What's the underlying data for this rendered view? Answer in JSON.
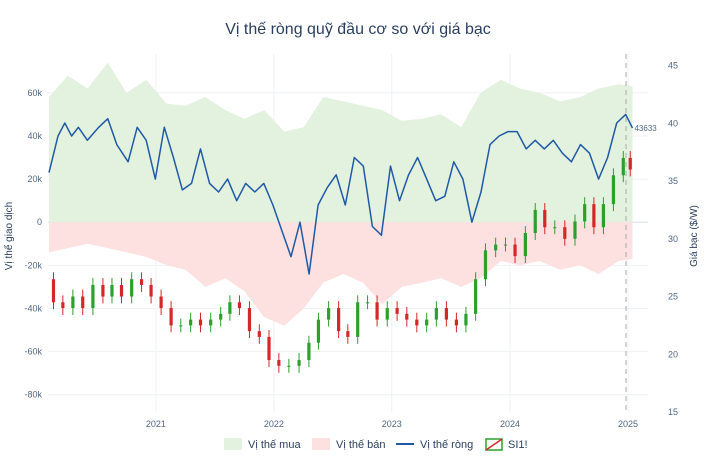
{
  "chart_data": {
    "type": "line",
    "title": "Vị thế ròng quỹ đầu cơ so với giá bạc",
    "xlabel": "",
    "ylabel": "Vị thế giao dịch",
    "y2label": "Giá bạc ($/W)",
    "x_ticks": [
      "2021",
      "2022",
      "2023",
      "2024",
      "2025"
    ],
    "x_range": [
      "2020-08-01",
      "2025-09-01"
    ],
    "forecast_start": "2025-06-25",
    "ylim": [
      -88000,
      78000
    ],
    "y_ticks": [
      60000,
      40000,
      20000,
      0,
      -20000,
      -40000,
      -60000,
      -80000
    ],
    "y_tick_labels": [
      "60k",
      "40k",
      "20k",
      "0",
      "-20k",
      "-40k",
      "-60k",
      "-80k"
    ],
    "y2lim": [
      15,
      46
    ],
    "y2_ticks": [
      15,
      20,
      25,
      30,
      35,
      40,
      45
    ],
    "y2_tick_labels": [
      "15",
      "20",
      "25",
      "30",
      "35",
      "40",
      "45"
    ],
    "last_net_label": "43633",
    "legend": [
      "Vị thế mua",
      "Vị thế bán",
      "Vị thế ròng",
      "SI1!"
    ],
    "legend_position": "bottom",
    "grid": true,
    "colors": {
      "long_fill": "#e3f1df",
      "short_fill": "#fde0e0",
      "net_line": "#1f5aa6",
      "candle_up": "#2ca02c",
      "candle_down": "#d62728",
      "forecast_line": "#aaaaaa"
    },
    "series": [
      {
        "name": "Vị thế mua",
        "x": [
          "2020-08-04",
          "2020-10-01",
          "2020-12-01",
          "2021-02-02",
          "2021-04-01",
          "2021-06-01",
          "2021-08-03",
          "2021-10-01",
          "2021-12-01",
          "2022-02-01",
          "2022-04-01",
          "2022-06-01",
          "2022-08-02",
          "2022-10-01",
          "2022-12-01",
          "2023-02-01",
          "2023-04-03",
          "2023-06-01",
          "2023-08-01",
          "2023-10-02",
          "2023-12-01",
          "2024-02-01",
          "2024-04-01",
          "2024-06-03",
          "2024-08-01",
          "2024-10-01",
          "2024-12-02",
          "2025-02-03",
          "2025-04-01",
          "2025-06-02",
          "2025-07-15"
        ],
        "values": [
          58000,
          68000,
          62000,
          74000,
          60000,
          66000,
          55000,
          54000,
          58000,
          52000,
          48000,
          52000,
          42000,
          44000,
          58000,
          56000,
          54000,
          52000,
          47000,
          48000,
          50000,
          44000,
          60000,
          66000,
          62000,
          60000,
          56000,
          58000,
          62000,
          64000,
          63000
        ]
      },
      {
        "name": "Vị thế bán",
        "x": [
          "2020-08-04",
          "2020-10-01",
          "2020-12-01",
          "2021-02-02",
          "2021-04-01",
          "2021-06-01",
          "2021-08-03",
          "2021-10-01",
          "2021-12-01",
          "2022-02-01",
          "2022-04-01",
          "2022-06-01",
          "2022-08-02",
          "2022-10-01",
          "2022-12-01",
          "2023-02-01",
          "2023-04-03",
          "2023-06-01",
          "2023-08-01",
          "2023-10-02",
          "2023-12-01",
          "2024-02-01",
          "2024-04-01",
          "2024-06-03",
          "2024-08-01",
          "2024-10-01",
          "2024-12-02",
          "2025-02-03",
          "2025-04-01",
          "2025-06-02",
          "2025-07-15"
        ],
        "values": [
          -14000,
          -12000,
          -10000,
          -12000,
          -14000,
          -16000,
          -20000,
          -22000,
          -30000,
          -26000,
          -32000,
          -44000,
          -48000,
          -40000,
          -28000,
          -24000,
          -28000,
          -38000,
          -30000,
          -28000,
          -26000,
          -30000,
          -26000,
          -18000,
          -20000,
          -18000,
          -22000,
          -20000,
          -24000,
          -18000,
          -17000
        ]
      },
      {
        "name": "Vị thế ròng",
        "x": [
          "2020-08-04",
          "2020-09-01",
          "2020-09-22",
          "2020-10-13",
          "2020-11-03",
          "2020-12-01",
          "2021-01-05",
          "2021-02-02",
          "2021-03-02",
          "2021-04-06",
          "2021-05-04",
          "2021-06-01",
          "2021-06-29",
          "2021-07-27",
          "2021-08-24",
          "2021-09-21",
          "2021-10-19",
          "2021-11-16",
          "2021-12-14",
          "2022-01-11",
          "2022-02-08",
          "2022-03-08",
          "2022-04-05",
          "2022-05-03",
          "2022-05-31",
          "2022-06-28",
          "2022-07-26",
          "2022-08-23",
          "2022-09-20",
          "2022-10-18",
          "2022-11-15",
          "2022-12-13",
          "2023-01-10",
          "2023-02-07",
          "2023-03-07",
          "2023-04-04",
          "2023-05-02",
          "2023-05-30",
          "2023-06-27",
          "2023-07-25",
          "2023-08-22",
          "2023-09-19",
          "2023-10-17",
          "2023-11-14",
          "2023-12-12",
          "2024-01-09",
          "2024-02-06",
          "2024-03-05",
          "2024-04-02",
          "2024-04-30",
          "2024-05-28",
          "2024-06-25",
          "2024-07-23",
          "2024-08-20",
          "2024-09-17",
          "2024-10-15",
          "2024-11-12",
          "2024-12-10",
          "2025-01-07",
          "2025-02-04",
          "2025-03-04",
          "2025-04-01",
          "2025-04-29",
          "2025-05-27",
          "2025-06-24",
          "2025-07-15"
        ],
        "values": [
          23000,
          40000,
          46000,
          40000,
          44000,
          38000,
          44000,
          48000,
          36000,
          28000,
          44000,
          38000,
          20000,
          44000,
          30000,
          15000,
          18000,
          34000,
          18000,
          14000,
          20000,
          10000,
          18000,
          14000,
          18000,
          8000,
          -4000,
          -16000,
          0,
          -24000,
          8000,
          16000,
          22000,
          8000,
          30000,
          26000,
          -2000,
          -6000,
          26000,
          10000,
          22000,
          30000,
          20000,
          10000,
          12000,
          28000,
          20000,
          0,
          14000,
          36000,
          40000,
          42000,
          42000,
          34000,
          38000,
          34000,
          38000,
          32000,
          28000,
          36000,
          32000,
          20000,
          30000,
          46000,
          50000,
          43633
        ]
      },
      {
        "name": "SI1!",
        "x": [
          "2020-08-04",
          "2020-09-01",
          "2020-10-01",
          "2020-11-02",
          "2020-12-01",
          "2021-01-04",
          "2021-02-01",
          "2021-03-01",
          "2021-04-01",
          "2021-05-03",
          "2021-06-01",
          "2021-07-01",
          "2021-08-02",
          "2021-09-01",
          "2021-10-01",
          "2021-11-01",
          "2021-12-01",
          "2022-01-03",
          "2022-02-01",
          "2022-03-01",
          "2022-04-01",
          "2022-05-02",
          "2022-06-01",
          "2022-07-01",
          "2022-08-01",
          "2022-09-01",
          "2022-10-03",
          "2022-11-01",
          "2022-12-01",
          "2023-01-03",
          "2023-02-01",
          "2023-03-01",
          "2023-04-03",
          "2023-05-01",
          "2023-06-01",
          "2023-07-03",
          "2023-08-01",
          "2023-09-01",
          "2023-10-02",
          "2023-11-01",
          "2023-12-01",
          "2024-01-02",
          "2024-02-01",
          "2024-03-01",
          "2024-04-01",
          "2024-05-01",
          "2024-06-03",
          "2024-07-01",
          "2024-08-01",
          "2024-09-03",
          "2024-10-01",
          "2024-11-01",
          "2024-12-02",
          "2025-01-02",
          "2025-02-03",
          "2025-03-03",
          "2025-04-01",
          "2025-05-01",
          "2025-06-02",
          "2025-07-01",
          "2025-07-15"
        ],
        "values": [
          26.5,
          24.5,
          24.0,
          25.0,
          24.0,
          26.0,
          25.0,
          26.0,
          25.0,
          26.5,
          26.0,
          25.0,
          24.0,
          22.5,
          22.5,
          23.0,
          22.5,
          23.0,
          23.5,
          24.5,
          24.0,
          22.0,
          21.5,
          19.5,
          19.0,
          19.0,
          19.5,
          21.0,
          23.0,
          24.0,
          22.0,
          21.5,
          24.5,
          24.5,
          23.0,
          24.0,
          23.5,
          23.0,
          22.5,
          23.0,
          24.0,
          23.0,
          22.5,
          23.5,
          26.5,
          29.0,
          29.5,
          29.5,
          28.5,
          30.5,
          32.5,
          31.0,
          31.0,
          30.0,
          31.5,
          33.0,
          31.0,
          33.0,
          35.5,
          37.0,
          36.0
        ]
      }
    ]
  }
}
